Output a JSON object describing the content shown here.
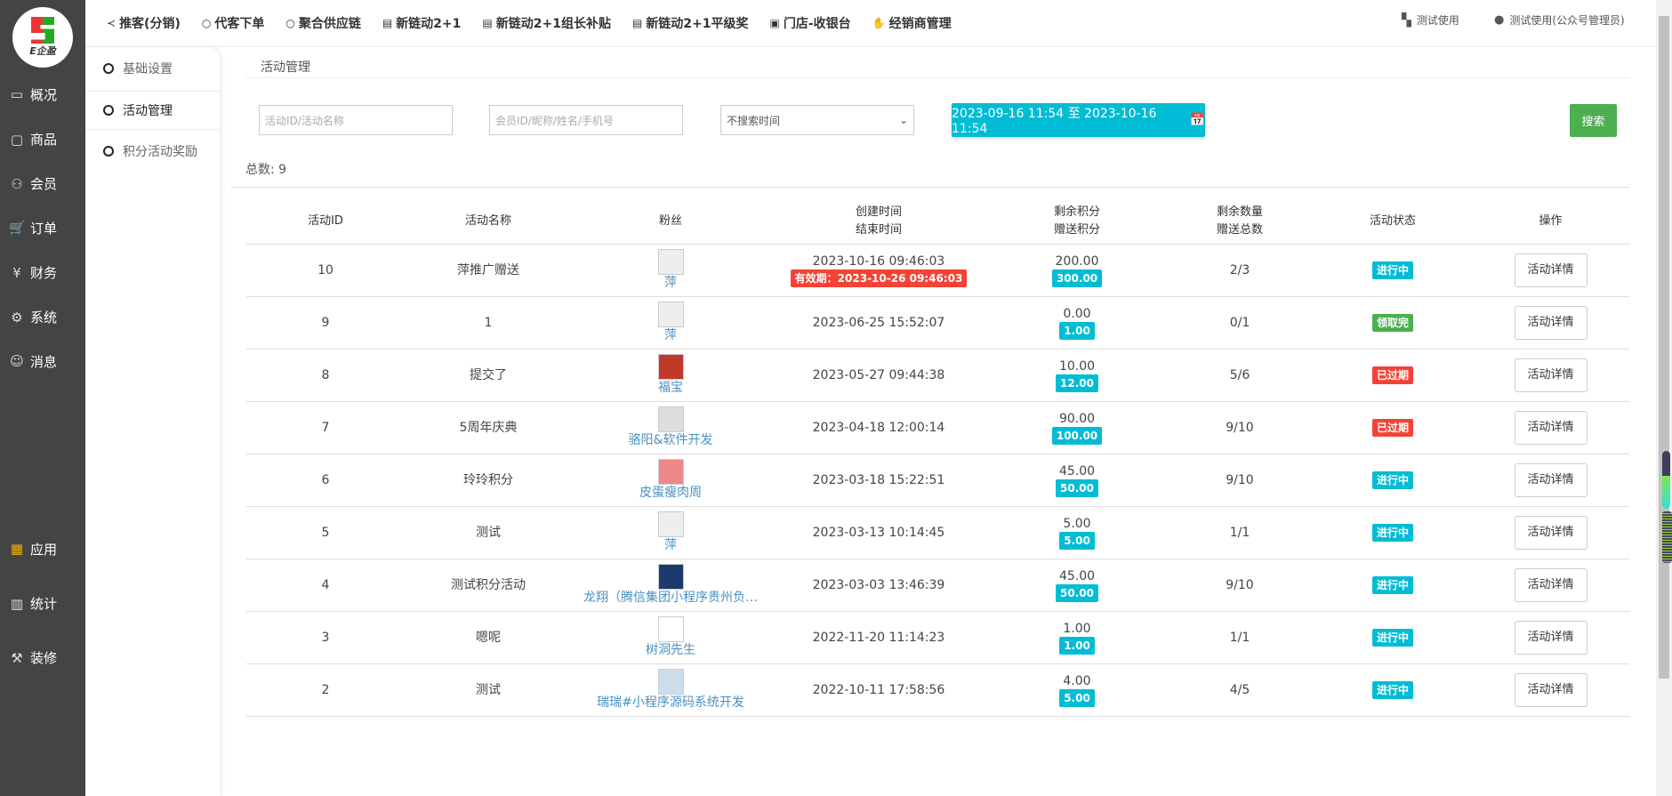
{
  "brand": {
    "logo_text": "E企盈"
  },
  "sidebar": {
    "items": [
      {
        "label": "概况",
        "icon": "monitor-icon"
      },
      {
        "label": "商品",
        "icon": "shop-icon"
      },
      {
        "label": "会员",
        "icon": "users-icon"
      },
      {
        "label": "订单",
        "icon": "cart-icon"
      },
      {
        "label": "财务",
        "icon": "yen-icon"
      },
      {
        "label": "系统",
        "icon": "gear-icon"
      },
      {
        "label": "消息",
        "icon": "chat-icon"
      },
      {
        "label": "应用",
        "icon": "apps-icon"
      },
      {
        "label": "统计",
        "icon": "bar-chart-icon"
      },
      {
        "label": "装修",
        "icon": "paint-roller-icon"
      }
    ]
  },
  "topnav": {
    "items": [
      {
        "label": "推客(分销)",
        "icon": "share-icon"
      },
      {
        "label": "代客下单",
        "icon": "circle-icon"
      },
      {
        "label": "聚合供应链",
        "icon": "circle-icon"
      },
      {
        "label": "新链动2+1",
        "icon": "list-icon"
      },
      {
        "label": "新链动2+1组长补贴",
        "icon": "list-icon"
      },
      {
        "label": "新链动2+1平级奖",
        "icon": "list-icon"
      },
      {
        "label": "门店-收银台",
        "icon": "cash-icon"
      },
      {
        "label": "经销商管理",
        "icon": "handshake-icon"
      }
    ],
    "store": "测试使用",
    "user": "测试使用(公众号管理员)"
  },
  "submenu": {
    "items": [
      {
        "label": "基础设置"
      },
      {
        "label": "活动管理",
        "active": true
      },
      {
        "label": "积分活动奖励"
      }
    ]
  },
  "breadcrumb": "活动管理",
  "filters": {
    "activity_placeholder": "活动ID/活动名称",
    "member_placeholder": "会员ID/昵称/姓名/手机号",
    "time_select": "不搜索时间",
    "date_range": "2023-09-16 11:54 至 2023-10-16 11:54",
    "search": "搜索"
  },
  "total": "总数:  9",
  "table": {
    "headers": [
      "活动ID",
      "活动名称",
      "粉丝",
      "创建时间",
      "结束时间",
      "剩余积分",
      "赠送积分",
      "剩余数量",
      "赠送总数",
      "活动状态",
      "操作"
    ],
    "rows": [
      {
        "id": "10",
        "name": "萍推广赠送",
        "fan": "萍",
        "created": "2023-10-16 09:46:03",
        "valid": "有效期：2023-10-26 09:46:03",
        "remain": "200.00",
        "gift": "300.00",
        "qty": "2/3",
        "status": "进行中",
        "action": "活动详情"
      },
      {
        "id": "9",
        "name": "1",
        "fan": "萍",
        "created": "2023-06-25 15:52:07",
        "remain": "0.00",
        "gift": "1.00",
        "qty": "0/1",
        "status": "领取完",
        "action": "活动详情"
      },
      {
        "id": "8",
        "name": "提交了",
        "fan": "福宝",
        "created": "2023-05-27 09:44:38",
        "remain": "10.00",
        "gift": "12.00",
        "qty": "5/6",
        "status": "已过期",
        "action": "活动详情"
      },
      {
        "id": "7",
        "name": "5周年庆典",
        "fan": "骆阳&软件开发",
        "created": "2023-04-18 12:00:14",
        "remain": "90.00",
        "gift": "100.00",
        "qty": "9/10",
        "status": "已过期",
        "action": "活动详情"
      },
      {
        "id": "6",
        "name": "玲玲积分",
        "fan": "皮蛋瘦肉周",
        "created": "2023-03-18 15:22:51",
        "remain": "45.00",
        "gift": "50.00",
        "qty": "9/10",
        "status": "进行中",
        "action": "活动详情"
      },
      {
        "id": "5",
        "name": "测试",
        "fan": "萍",
        "created": "2023-03-13 10:14:45",
        "remain": "5.00",
        "gift": "5.00",
        "qty": "1/1",
        "status": "进行中",
        "action": "活动详情"
      },
      {
        "id": "4",
        "name": "测试积分活动",
        "fan": "龙翔（腾信集团小程序贵州负…",
        "created": "2023-03-03 13:46:39",
        "remain": "45.00",
        "gift": "50.00",
        "qty": "9/10",
        "status": "进行中",
        "action": "活动详情"
      },
      {
        "id": "3",
        "name": "嗯呢",
        "fan": "树洞先生",
        "created": "2022-11-20 11:14:23",
        "remain": "1.00",
        "gift": "1.00",
        "qty": "1/1",
        "status": "进行中",
        "action": "活动详情"
      },
      {
        "id": "2",
        "name": "测试",
        "fan": "瑞瑞#小程序源码系统开发",
        "created": "2022-10-11 17:58:56",
        "remain": "4.00",
        "gift": "5.00",
        "qty": "4/5",
        "status": "进行中",
        "action": "活动详情"
      }
    ]
  },
  "colors": {
    "sidebar": "#444444",
    "primary": "#00bcd4",
    "success": "#4caf50",
    "danger": "#f44336",
    "link": "#4a90c2"
  },
  "status_colors": {
    "进行中": "#00bcd4",
    "领取完": "#4caf50",
    "已过期": "#f44336"
  },
  "avatar_colors": [
    "#eee",
    "#eee",
    "#c0392b",
    "#ddd",
    "#e88",
    "#eee",
    "#1c3a6e",
    "#fff",
    "#cde"
  ]
}
